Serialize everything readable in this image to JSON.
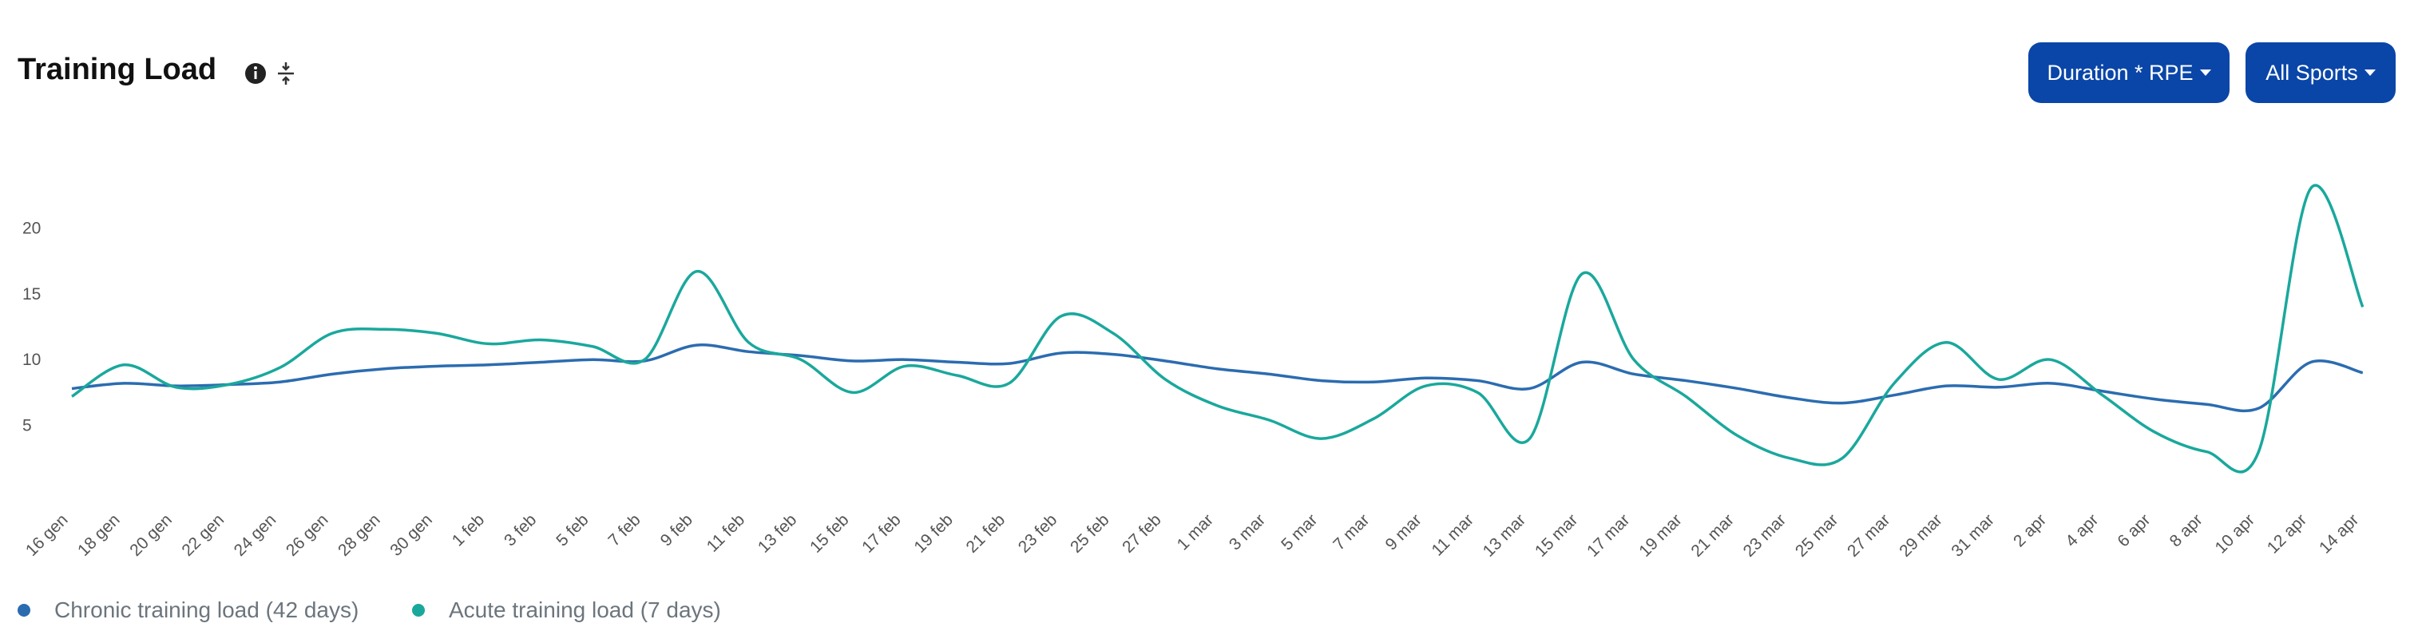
{
  "header": {
    "title": "Training Load",
    "buttons": [
      "Duration * RPE",
      "All Sports"
    ]
  },
  "chart_data": {
    "type": "line",
    "categories": [
      "16 gen",
      "18 gen",
      "20 gen",
      "22 gen",
      "24 gen",
      "26 gen",
      "28 gen",
      "30 gen",
      "1 feb",
      "3 feb",
      "5 feb",
      "7 feb",
      "9 feb",
      "11 feb",
      "13 feb",
      "15 feb",
      "17 feb",
      "19 feb",
      "21 feb",
      "23 feb",
      "25 feb",
      "27 feb",
      "1 mar",
      "3 mar",
      "5 mar",
      "7 mar",
      "9 mar",
      "11 mar",
      "13 mar",
      "15 mar",
      "17 mar",
      "19 mar",
      "21 mar",
      "23 mar",
      "25 mar",
      "27 mar",
      "29 mar",
      "31 mar",
      "2 apr",
      "4 apr",
      "6 apr",
      "8 apr",
      "10 apr",
      "12 apr",
      "14 apr"
    ],
    "series": [
      {
        "name": "Chronic training load (42 days)",
        "color": "#2b6cb0",
        "values": [
          7.8,
          8.2,
          8.0,
          8.1,
          8.3,
          8.9,
          9.3,
          9.5,
          9.6,
          9.8,
          10.0,
          9.9,
          11.1,
          10.6,
          10.3,
          9.9,
          10.0,
          9.8,
          9.7,
          10.5,
          10.4,
          9.9,
          9.3,
          8.9,
          8.4,
          8.3,
          8.6,
          8.4,
          7.8,
          9.8,
          8.9,
          8.4,
          7.8,
          7.1,
          6.7,
          7.3,
          8.0,
          7.9,
          8.2,
          7.6,
          7.0,
          6.6,
          6.3,
          9.8,
          9.0
        ]
      },
      {
        "name": "Acute training load (7 days)",
        "color": "#1aa89c",
        "values": [
          7.2,
          9.6,
          7.9,
          8.1,
          9.4,
          12.0,
          12.3,
          12.0,
          11.2,
          11.5,
          11.0,
          10.0,
          16.7,
          11.3,
          10.0,
          7.5,
          9.5,
          8.8,
          8.2,
          13.3,
          12.0,
          8.5,
          6.5,
          5.4,
          4.0,
          5.5,
          8.0,
          7.5,
          4.0,
          16.5,
          10.0,
          7.2,
          4.2,
          2.5,
          2.5,
          8.2,
          11.3,
          8.5,
          10.0,
          7.3,
          4.5,
          3.0,
          3.0,
          23.0,
          14.0
        ]
      }
    ],
    "ylim": [
      0,
      25
    ],
    "yticks": [
      5,
      10,
      15,
      20
    ],
    "grid": false
  }
}
